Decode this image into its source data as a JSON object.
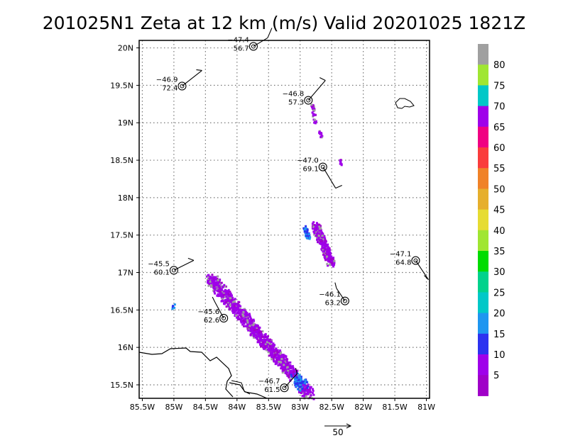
{
  "chart_data": {
    "type": "scatter",
    "title": "201025N1 Zeta at 12 km (m/s) Valid 20201025 1821Z",
    "x_ticks": [
      "85.5W",
      "85W",
      "84.5W",
      "84W",
      "83.5W",
      "83W",
      "82.5W",
      "82W",
      "81.5W",
      "81W"
    ],
    "y_ticks": [
      "15.5N",
      "16N",
      "16.5N",
      "17N",
      "17.5N",
      "18N",
      "18.5N",
      "19N",
      "19.5N",
      "20N"
    ],
    "xlim": [
      -85.55,
      -80.95
    ],
    "ylim": [
      15.32,
      20.1
    ],
    "grid": true,
    "colorbar": {
      "labels": [
        "80",
        "75",
        "70",
        "65",
        "60",
        "55",
        "50",
        "45",
        "40",
        "35",
        "30",
        "25",
        "20",
        "15",
        "10",
        "5"
      ],
      "colors": [
        "#a0a0a0",
        "#a0e632",
        "#00c8c8",
        "#9f00ea",
        "#f00082",
        "#fa3c3c",
        "#f08228",
        "#e6af2d",
        "#e6dc32",
        "#a0e632",
        "#00dc00",
        "#00d28c",
        "#00c8c8",
        "#1e96f0",
        "#2d32f0",
        "#9f00ea",
        "#a000c8"
      ]
    },
    "observations": [
      {
        "lon": -83.74,
        "lat": 20.02,
        "temp": "−47.4",
        "speed": "56.7"
      },
      {
        "lon": -84.87,
        "lat": 19.49,
        "temp": "−46.9",
        "speed": "72.4"
      },
      {
        "lon": -82.87,
        "lat": 19.3,
        "temp": "−46.8",
        "speed": "57.3"
      },
      {
        "lon": -82.64,
        "lat": 18.41,
        "temp": "−47.0",
        "speed": "69.1"
      },
      {
        "lon": -85.0,
        "lat": 17.03,
        "temp": "−45.5",
        "speed": "60.1"
      },
      {
        "lon": -81.17,
        "lat": 17.16,
        "temp": "−47.1",
        "speed": "64.8"
      },
      {
        "lon": -82.29,
        "lat": 16.62,
        "temp": "−46.1",
        "speed": "63.2"
      },
      {
        "lon": -84.21,
        "lat": 16.39,
        "temp": "−45.6",
        "speed": "62.6"
      },
      {
        "lon": -83.25,
        "lat": 15.46,
        "temp": "−46.7",
        "speed": "61.5"
      }
    ],
    "vector_key": "50"
  }
}
